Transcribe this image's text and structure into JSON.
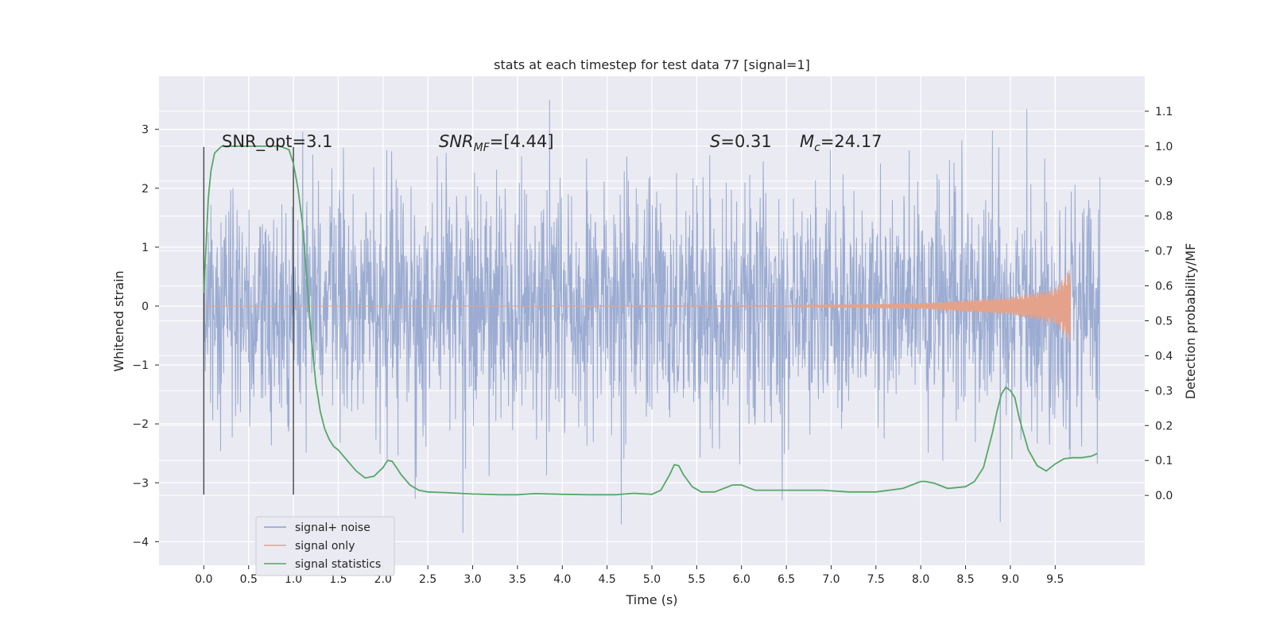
{
  "chart_data": {
    "type": "line",
    "title": "stats at each timestep for test data 77 [signal=1]",
    "xlabel": "Time (s)",
    "ylabel": "Whitened strain",
    "ylabel_right": "Detection probability/MF",
    "xlim": [
      -0.5,
      10.5
    ],
    "ylim": [
      -4.4,
      3.9
    ],
    "ylim_right": [
      -0.2,
      1.2
    ],
    "x_ticks": [
      0.0,
      0.5,
      1.0,
      1.5,
      2.0,
      2.5,
      3.0,
      3.5,
      4.0,
      4.5,
      5.0,
      5.5,
      6.0,
      6.5,
      7.0,
      7.5,
      8.0,
      8.5,
      9.0,
      9.5
    ],
    "x_tick_labels": [
      "0.0",
      "0.5",
      "1.0",
      "1.5",
      "2.0",
      "2.5",
      "3.0",
      "3.5",
      "4.0",
      "4.5",
      "5.0",
      "5.5",
      "6.0",
      "6.5",
      "7.0",
      "7.5",
      "8.0",
      "8.5",
      "9.0",
      "9.5"
    ],
    "y_ticks": [
      -4,
      -3,
      -2,
      -1,
      0,
      1,
      2,
      3
    ],
    "y_tick_labels": [
      "−4",
      "−3",
      "−2",
      "−1",
      "0",
      "1",
      "2",
      "3"
    ],
    "y_ticks_right": [
      0.0,
      0.1,
      0.2,
      0.3,
      0.4,
      0.5,
      0.6,
      0.7,
      0.8,
      0.9,
      1.0,
      1.1
    ],
    "y_tick_labels_right": [
      "0.0",
      "0.1",
      "0.2",
      "0.3",
      "0.4",
      "0.5",
      "0.6",
      "0.7",
      "0.8",
      "0.9",
      "1.0",
      "1.1"
    ],
    "grid": true,
    "legend_position": "lower-left",
    "vertical_lines_x": [
      0.0,
      1.0
    ],
    "annotations": {
      "snr_opt": "SNR_opt=3.1",
      "snr_mf_base": "SNR",
      "snr_mf_sub": "MF",
      "snr_mf_value": "=[4.44]",
      "s_symbol": "S",
      "s_value": "=0.31",
      "mc_base": "M",
      "mc_sub": "c",
      "mc_value": "=24.17"
    },
    "series": [
      {
        "name": "signal+ noise",
        "color": "#8da0cb",
        "axis": "left",
        "x_range": [
          0.0,
          10.0
        ],
        "typical_range": [
          -1.5,
          1.5
        ],
        "extreme_range": [
          -4.05,
          3.5
        ]
      },
      {
        "name": "signal only",
        "color": "#e5a28a",
        "axis": "left",
        "description_points": {
          "x": [
            0.0,
            6.5,
            8.0,
            9.0,
            9.5,
            9.67
          ],
          "amplitude": [
            0.0,
            0.01,
            0.05,
            0.15,
            0.3,
            0.65
          ]
        }
      },
      {
        "name": "signal statistics",
        "color": "#55a868",
        "axis": "right",
        "x": [
          0.0,
          0.05,
          0.08,
          0.12,
          0.2,
          0.3,
          0.5,
          0.7,
          0.85,
          0.95,
          1.0,
          1.05,
          1.1,
          1.15,
          1.2,
          1.25,
          1.3,
          1.35,
          1.4,
          1.45,
          1.5,
          1.6,
          1.7,
          1.8,
          1.9,
          2.0,
          2.05,
          2.1,
          2.15,
          2.2,
          2.3,
          2.4,
          2.5,
          2.7,
          3.0,
          3.3,
          3.5,
          3.7,
          4.0,
          4.3,
          4.6,
          4.8,
          5.0,
          5.1,
          5.2,
          5.25,
          5.3,
          5.35,
          5.45,
          5.55,
          5.7,
          5.9,
          6.0,
          6.15,
          6.3,
          6.6,
          6.9,
          7.2,
          7.5,
          7.8,
          8.0,
          8.05,
          8.15,
          8.3,
          8.5,
          8.6,
          8.7,
          8.8,
          8.85,
          8.9,
          8.95,
          9.0,
          9.05,
          9.1,
          9.2,
          9.3,
          9.4,
          9.5,
          9.6,
          9.7,
          9.8,
          9.9,
          9.97
        ],
        "values": [
          0.58,
          0.85,
          0.93,
          0.98,
          1.0,
          1.0,
          1.0,
          1.0,
          1.0,
          0.99,
          0.95,
          0.88,
          0.78,
          0.62,
          0.45,
          0.32,
          0.24,
          0.19,
          0.16,
          0.14,
          0.13,
          0.1,
          0.07,
          0.05,
          0.055,
          0.08,
          0.1,
          0.098,
          0.08,
          0.06,
          0.03,
          0.015,
          0.01,
          0.008,
          0.004,
          0.002,
          0.002,
          0.005,
          0.003,
          0.002,
          0.002,
          0.006,
          0.003,
          0.015,
          0.06,
          0.088,
          0.085,
          0.06,
          0.025,
          0.01,
          0.01,
          0.03,
          0.03,
          0.015,
          0.015,
          0.015,
          0.015,
          0.01,
          0.01,
          0.02,
          0.04,
          0.04,
          0.035,
          0.02,
          0.025,
          0.04,
          0.08,
          0.18,
          0.24,
          0.29,
          0.31,
          0.3,
          0.28,
          0.22,
          0.13,
          0.085,
          0.07,
          0.09,
          0.105,
          0.108,
          0.108,
          0.112,
          0.12
        ]
      }
    ]
  }
}
